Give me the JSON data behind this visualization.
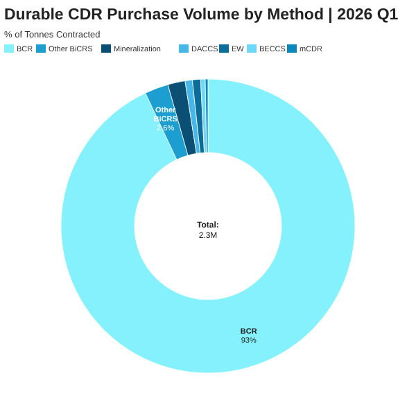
{
  "chart_data": {
    "type": "donut",
    "title": "Durable CDR Purchase Volume by Method | 2026 Q1",
    "subtitle": "% of Tonnes Contracted",
    "categories": [
      "BCR",
      "Other BiCRS",
      "Mineralization",
      "DACCS",
      "EW",
      "BECCS",
      "mCDR"
    ],
    "values": [
      93,
      2.6,
      1.9,
      0.8,
      0.9,
      0.5,
      0.3
    ],
    "colors": [
      "#84f1fd",
      "#1c9fd0",
      "#0b4f75",
      "#45b7e8",
      "#0c6d99",
      "#6fd8f8",
      "#0b88b9"
    ],
    "value_labels": [
      "93%",
      "2.6%",
      null,
      null,
      null,
      null,
      null
    ],
    "annotations": [
      "Total:\n2.3M"
    ],
    "legend": "top left"
  }
}
